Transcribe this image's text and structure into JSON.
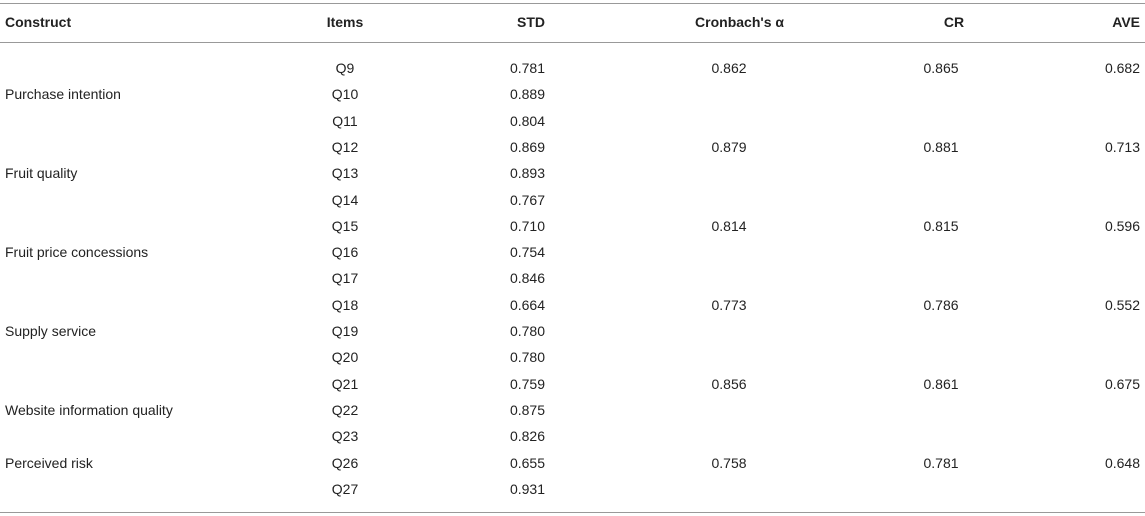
{
  "table": {
    "columns": [
      "Construct",
      "Items",
      "STD",
      "Cronbach's α",
      "CR",
      "AVE"
    ],
    "groups": [
      {
        "construct": "Purchase intention",
        "cronbach": "0.862",
        "cr": "0.865",
        "ave": "0.682",
        "rows": [
          [
            "Q9",
            "0.781"
          ],
          [
            "Q10",
            "0.889"
          ],
          [
            "Q11",
            "0.804"
          ]
        ]
      },
      {
        "construct": "Fruit quality",
        "cronbach": "0.879",
        "cr": "0.881",
        "ave": "0.713",
        "rows": [
          [
            "Q12",
            "0.869"
          ],
          [
            "Q13",
            "0.893"
          ],
          [
            "Q14",
            "0.767"
          ]
        ]
      },
      {
        "construct": "Fruit price concessions",
        "cronbach": "0.814",
        "cr": "0.815",
        "ave": "0.596",
        "rows": [
          [
            "Q15",
            "0.710"
          ],
          [
            "Q16",
            "0.754"
          ],
          [
            "Q17",
            "0.846"
          ]
        ]
      },
      {
        "construct": "Supply service",
        "cronbach": "0.773",
        "cr": "0.786",
        "ave": "0.552",
        "rows": [
          [
            "Q18",
            "0.664"
          ],
          [
            "Q19",
            "0.780"
          ],
          [
            "Q20",
            "0.780"
          ]
        ]
      },
      {
        "construct": "Website information quality",
        "cronbach": "0.856",
        "cr": "0.861",
        "ave": "0.675",
        "rows": [
          [
            "Q21",
            "0.759"
          ],
          [
            "Q22",
            "0.875"
          ],
          [
            "Q23",
            "0.826"
          ]
        ]
      },
      {
        "construct": "Perceived risk",
        "cronbach": "0.758",
        "cr": "0.781",
        "ave": "0.648",
        "rows": [
          [
            "Q26",
            "0.655"
          ],
          [
            "Q27",
            "0.931"
          ]
        ]
      }
    ]
  }
}
